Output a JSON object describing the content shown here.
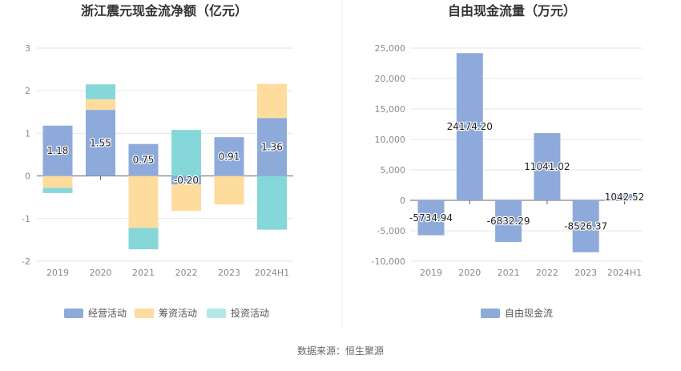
{
  "source": "数据来源：恒生聚源",
  "chart_data": [
    {
      "type": "bar",
      "stacked": true,
      "title": "浙江震元现金流净额（亿元）",
      "categories": [
        "2019",
        "2020",
        "2021",
        "2022",
        "2023",
        "2024H1"
      ],
      "ylim": [
        -2,
        3
      ],
      "yticks": [
        "3",
        "2",
        "1",
        "0",
        "-1",
        "-2"
      ],
      "ytick_values": [
        3,
        2,
        1,
        0,
        -1,
        -2
      ],
      "grid": true,
      "legend_position": "bottom",
      "series": [
        {
          "name": "经营活动",
          "color": "#8eaadb",
          "values": [
            1.18,
            1.55,
            0.75,
            -0.2,
            0.91,
            1.36
          ],
          "labels": [
            "1.18",
            "1.55",
            "0.75",
            "-0.20",
            "0.91",
            "1.36"
          ]
        },
        {
          "name": "筹资活动",
          "color": "#fedc9e",
          "values": [
            -0.28,
            0.25,
            -1.22,
            -0.62,
            -0.67,
            0.8
          ]
        },
        {
          "name": "投资活动",
          "color": "#86d7d9",
          "values": [
            -0.12,
            0.35,
            -0.5,
            1.08,
            0,
            -1.26
          ]
        }
      ]
    },
    {
      "type": "bar",
      "title": "自由现金流量（万元）",
      "categories": [
        "2019",
        "2020",
        "2021",
        "2022",
        "2023",
        "2024H1"
      ],
      "ylim": [
        -10000,
        25000
      ],
      "yticks": [
        "25,000",
        "20,000",
        "15,000",
        "10,000",
        "5,000",
        "0",
        "-5,000",
        "-10,000"
      ],
      "ytick_values": [
        25000,
        20000,
        15000,
        10000,
        5000,
        0,
        -5000,
        -10000
      ],
      "grid": true,
      "legend_position": "bottom",
      "series": [
        {
          "name": "自由现金流",
          "color": "#8eaadb",
          "values": [
            -5734.94,
            24174.2,
            -6832.29,
            11041.02,
            -8526.37,
            1042.52
          ],
          "labels": [
            "-5734.94",
            "24174.20",
            "-6832.29",
            "11041.02",
            "-8526.37",
            "1042.52"
          ]
        }
      ]
    }
  ]
}
